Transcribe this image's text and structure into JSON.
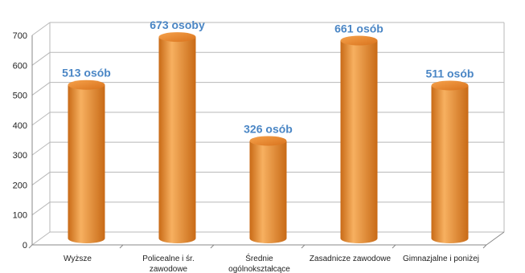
{
  "chart_data": {
    "type": "bar",
    "categories": [
      [
        "Wyższe"
      ],
      [
        "Policealne i śr.",
        "zawodowe"
      ],
      [
        "Średnie",
        "ogólnokształcące"
      ],
      [
        "Zasadnicze zawodowe"
      ],
      [
        "Gimnazjalne i poniżej"
      ]
    ],
    "values": [
      513,
      673,
      326,
      661,
      511
    ],
    "data_labels": [
      "513 osób",
      "673 osoby",
      "326 osób",
      "661 osób",
      "511 osób"
    ],
    "y_ticks": [
      0,
      100,
      200,
      300,
      400,
      500,
      600,
      700
    ],
    "ylim": [
      0,
      700
    ],
    "title": "",
    "xlabel": "",
    "ylabel": "",
    "grid": true,
    "legend": "none",
    "colors": {
      "bar_light": "#f7b060",
      "bar_mid": "#ef8f30",
      "bar_dark": "#c86a16",
      "bar_top": "#e07a22",
      "label": "#4a86c5",
      "grid": "#b8b8b8",
      "axis": "#888888"
    }
  }
}
